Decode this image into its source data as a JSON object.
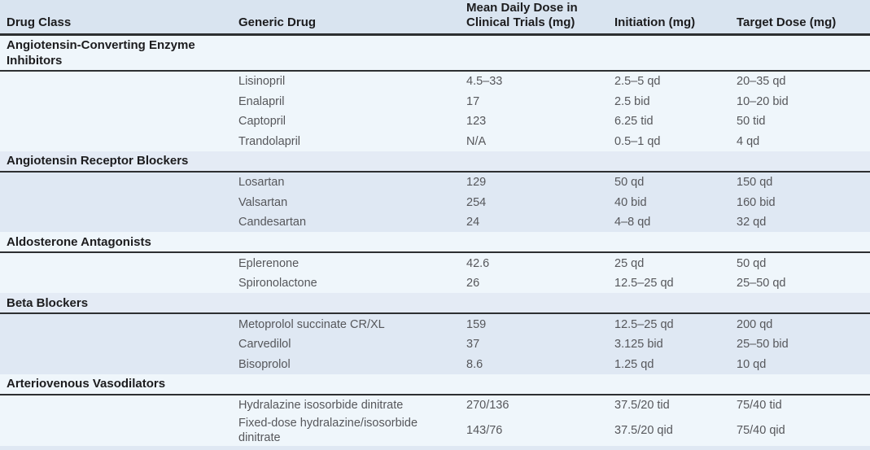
{
  "colors": {
    "header_bg": "#d9e4f0",
    "section_light_bg": "#eff6fb",
    "section_dark_bg": "#dfe8f3",
    "class_row_dark_bg": "#e4ebf5",
    "rule": "#2d2f31",
    "header_text": "#1c1c1e",
    "body_text": "#56575b"
  },
  "table": {
    "columns": [
      "Drug Class",
      "Generic Drug",
      "Mean Daily Dose in\nClinical Trials (mg)",
      "Initiation (mg)",
      "Target Dose (mg)"
    ],
    "sections": [
      {
        "drug_class": "Angiotensin-Converting Enzyme Inhibitors",
        "rows": [
          {
            "generic_drug": "Lisinopril",
            "mean_daily_dose": "4.5–33",
            "initiation": "2.5–5 qd",
            "target_dose": "20–35 qd"
          },
          {
            "generic_drug": "Enalapril",
            "mean_daily_dose": "17",
            "initiation": "2.5 bid",
            "target_dose": "10–20 bid"
          },
          {
            "generic_drug": "Captopril",
            "mean_daily_dose": "123",
            "initiation": "6.25 tid",
            "target_dose": "50 tid"
          },
          {
            "generic_drug": "Trandolapril",
            "mean_daily_dose": "N/A",
            "initiation": "0.5–1 qd",
            "target_dose": "4 qd"
          }
        ]
      },
      {
        "drug_class": "Angiotensin Receptor Blockers",
        "rows": [
          {
            "generic_drug": "Losartan",
            "mean_daily_dose": "129",
            "initiation": "50 qd",
            "target_dose": "150 qd"
          },
          {
            "generic_drug": "Valsartan",
            "mean_daily_dose": "254",
            "initiation": "40 bid",
            "target_dose": "160 bid"
          },
          {
            "generic_drug": "Candesartan",
            "mean_daily_dose": "24",
            "initiation": "4–8 qd",
            "target_dose": "32 qd"
          }
        ]
      },
      {
        "drug_class": "Aldosterone Antagonists",
        "rows": [
          {
            "generic_drug": "Eplerenone",
            "mean_daily_dose": "42.6",
            "initiation": "25 qd",
            "target_dose": "50 qd"
          },
          {
            "generic_drug": "Spironolactone",
            "mean_daily_dose": "26",
            "initiation": "12.5–25 qd",
            "target_dose": "25–50 qd"
          }
        ]
      },
      {
        "drug_class": "Beta Blockers",
        "rows": [
          {
            "generic_drug": "Metoprolol succinate CR/XL",
            "mean_daily_dose": "159",
            "initiation": "12.5–25 qd",
            "target_dose": "200 qd"
          },
          {
            "generic_drug": "Carvedilol",
            "mean_daily_dose": "37",
            "initiation": "3.125 bid",
            "target_dose": "25–50 bid"
          },
          {
            "generic_drug": "Bisoprolol",
            "mean_daily_dose": "8.6",
            "initiation": "1.25 qd",
            "target_dose": "10 qd"
          }
        ]
      },
      {
        "drug_class": "Arteriovenous Vasodilators",
        "rows": [
          {
            "generic_drug": "Hydralazine isosorbide dinitrate",
            "mean_daily_dose": "270/136",
            "initiation": "37.5/20 tid",
            "target_dose": "75/40 tid"
          },
          {
            "generic_drug": "Fixed-dose hydralazine/isosorbide dinitrate",
            "mean_daily_dose": "143/76",
            "initiation": "37.5/20 qid",
            "target_dose": "75/40 qid"
          }
        ]
      }
    ]
  }
}
